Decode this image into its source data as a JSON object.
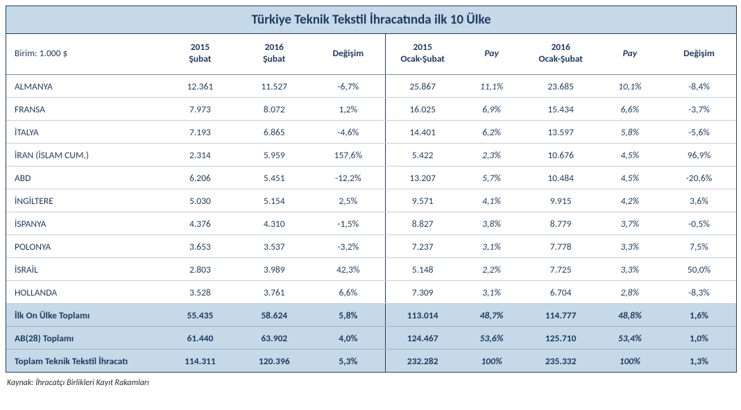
{
  "title": "Türkiye Teknik Tekstil İhracatında ilk 10 Ülke",
  "unit_label": "Birim: 1.000 $",
  "headers": {
    "c1": "2015\nŞubat",
    "c2": "2016\nŞubat",
    "c3": "Değişim",
    "c4": "2015\nOcak-Şubat",
    "c5": "Pay",
    "c6": "2016\nOcak-Şubat",
    "c7": "Pay",
    "c8": "Değişim"
  },
  "rows": [
    {
      "country": "ALMANYA",
      "v1": "12.361",
      "v2": "11.527",
      "d1": "-6,7%",
      "v3": "25.867",
      "p1": "11,1%",
      "v4": "23.685",
      "p2": "10,1%",
      "d2": "-8,4%"
    },
    {
      "country": "FRANSA",
      "v1": "7.973",
      "v2": "8.072",
      "d1": "1,2%",
      "v3": "16.025",
      "p1": "6,9%",
      "v4": "15.434",
      "p2": "6,6%",
      "d2": "-3,7%"
    },
    {
      "country": "İTALYA",
      "v1": "7.193",
      "v2": "6.865",
      "d1": "-4,6%",
      "v3": "14.401",
      "p1": "6,2%",
      "v4": "13.597",
      "p2": "5,8%",
      "d2": "-5,6%"
    },
    {
      "country": "İRAN (İSLAM CUM.)",
      "v1": "2.314",
      "v2": "5.959",
      "d1": "157,6%",
      "v3": "5.422",
      "p1": "2,3%",
      "v4": "10.676",
      "p2": "4,5%",
      "d2": "96,9%"
    },
    {
      "country": "ABD",
      "v1": "6.206",
      "v2": "5.451",
      "d1": "-12,2%",
      "v3": "13.207",
      "p1": "5,7%",
      "v4": "10.484",
      "p2": "4,5%",
      "d2": "-20,6%"
    },
    {
      "country": "İNGİLTERE",
      "v1": "5.030",
      "v2": "5.154",
      "d1": "2,5%",
      "v3": "9.571",
      "p1": "4,1%",
      "v4": "9.915",
      "p2": "4,2%",
      "d2": "3,6%"
    },
    {
      "country": "İSPANYA",
      "v1": "4.376",
      "v2": "4.310",
      "d1": "-1,5%",
      "v3": "8.827",
      "p1": "3,8%",
      "v4": "8.779",
      "p2": "3,7%",
      "d2": "-0,5%"
    },
    {
      "country": "POLONYA",
      "v1": "3.653",
      "v2": "3.537",
      "d1": "-3,2%",
      "v3": "7.237",
      "p1": "3,1%",
      "v4": "7.778",
      "p2": "3,3%",
      "d2": "7,5%"
    },
    {
      "country": "İSRAİL",
      "v1": "2.803",
      "v2": "3.989",
      "d1": "42,3%",
      "v3": "5.148",
      "p1": "2,2%",
      "v4": "7.725",
      "p2": "3,3%",
      "d2": "50,0%"
    },
    {
      "country": "HOLLANDA",
      "v1": "3.528",
      "v2": "3.761",
      "d1": "6,6%",
      "v3": "7.309",
      "p1": "3,1%",
      "v4": "6.704",
      "p2": "2,8%",
      "d2": "-8,3%"
    }
  ],
  "summary": [
    {
      "country": "İlk On Ülke Toplamı",
      "v1": "55.435",
      "v2": "58.624",
      "d1": "5,8%",
      "v3": "113.014",
      "p1": "48,7%",
      "v4": "114.777",
      "p2": "48,8%",
      "d2": "1,6%"
    },
    {
      "country": "AB(28) Toplamı",
      "v1": "61.440",
      "v2": "63.902",
      "d1": "4,0%",
      "v3": "124.467",
      "p1": "53,6%",
      "v4": "125.710",
      "p2": "53,4%",
      "d2": "1,0%"
    },
    {
      "country": "Toplam Teknik Tekstil İhracatı",
      "v1": "114.311",
      "v2": "120.396",
      "d1": "5,3%",
      "v3": "232.282",
      "p1": "100%",
      "v4": "235.332",
      "p2": "100%",
      "d2": "1,3%"
    }
  ],
  "source": "Kaynak: İhracatçı Birlikleri Kayıt Rakamları",
  "colors": {
    "header_bg": "#c5d9e8",
    "border_dark": "#1f3a5f",
    "row_line": "#c7cdd6",
    "text": "#1f3a5f"
  }
}
